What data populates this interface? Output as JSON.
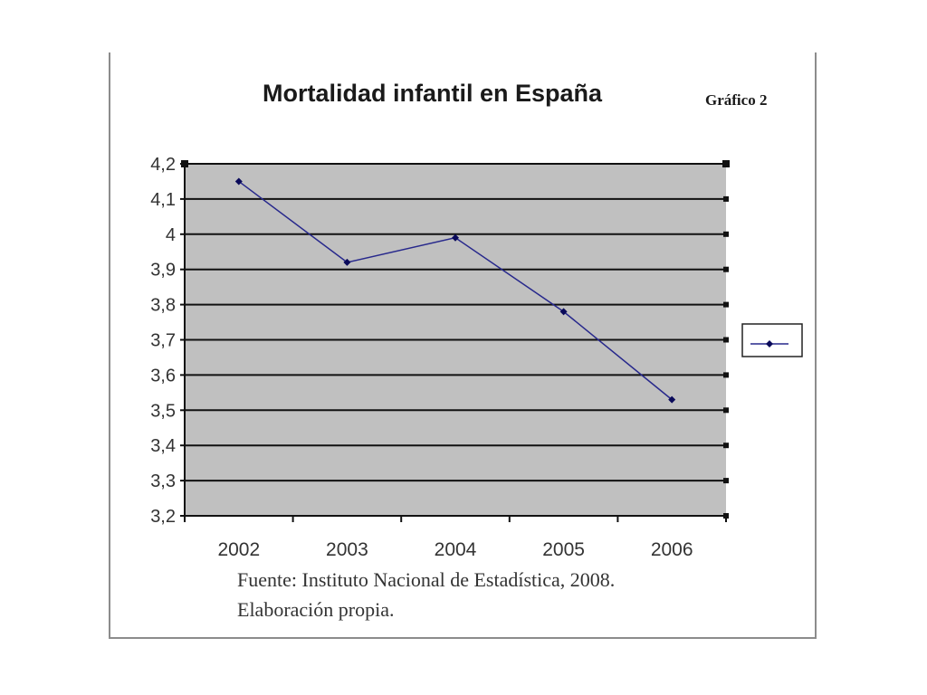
{
  "header": {
    "figure_label": "Gráfico 2"
  },
  "source": {
    "line1": "Fuente: Instituto Nacional de Estadística, 2008.",
    "line2": "Elaboración propia."
  },
  "chart_data": {
    "type": "line",
    "title": "Mortalidad infantil en España",
    "categories": [
      "2002",
      "2003",
      "2004",
      "2005",
      "2006"
    ],
    "series": [
      {
        "values": [
          4.15,
          3.92,
          3.99,
          3.78,
          3.53
        ]
      }
    ],
    "ylim": [
      3.2,
      4.2
    ],
    "yticks": [
      "4,2",
      "4,1",
      "4",
      "3,9",
      "3,8",
      "3,7",
      "3,6",
      "3,5",
      "3,4",
      "3,3",
      "3,2"
    ],
    "xlabel": "",
    "ylabel": "",
    "grid": true,
    "legend_position": "right",
    "colors": {
      "plot_background": "#c0c0c0",
      "line": "#27288c",
      "marker": "#0a0a5a",
      "gridline": "#111111"
    }
  }
}
